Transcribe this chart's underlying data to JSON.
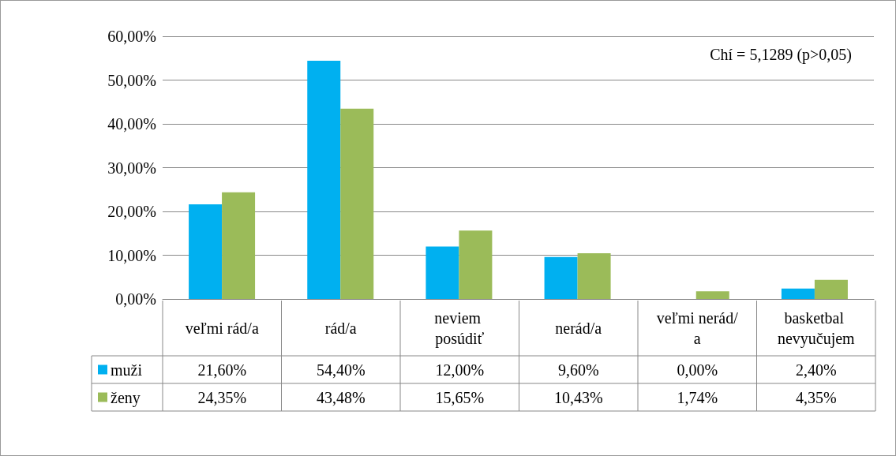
{
  "chart_data": {
    "type": "bar",
    "categories": [
      "veľmi rád/a",
      "rád/a",
      "neviem posúdiť",
      "nerád/a",
      "veľmi nerád/a",
      "basketbal nevyučujem"
    ],
    "series": [
      {
        "name": "muži",
        "color": "#00b0f0",
        "values": [
          21.6,
          54.4,
          12.0,
          9.6,
          0.0,
          2.4
        ],
        "value_labels": [
          "21,60%",
          "54,40%",
          "12,00%",
          "9,60%",
          "0,00%",
          "2,40%"
        ]
      },
      {
        "name": "ženy",
        "color": "#9bbb59",
        "values": [
          24.35,
          43.48,
          15.65,
          10.43,
          1.74,
          4.35
        ],
        "value_labels": [
          "24,35%",
          "43,48%",
          "15,65%",
          "10,43%",
          "1,74%",
          "4,35%"
        ]
      }
    ],
    "ylim": [
      0,
      60
    ],
    "yticks": [
      {
        "value": 0,
        "label": "0,00%"
      },
      {
        "value": 10,
        "label": "10,00%"
      },
      {
        "value": 20,
        "label": "20,00%"
      },
      {
        "value": 30,
        "label": "30,00%"
      },
      {
        "value": 40,
        "label": "40,00%"
      },
      {
        "value": 50,
        "label": "50,00%"
      },
      {
        "value": 60,
        "label": "60,00%"
      }
    ],
    "grid": "y",
    "legend": "bottom",
    "annotations": [
      "Chí = 5,1289 (p>0,05)"
    ]
  }
}
